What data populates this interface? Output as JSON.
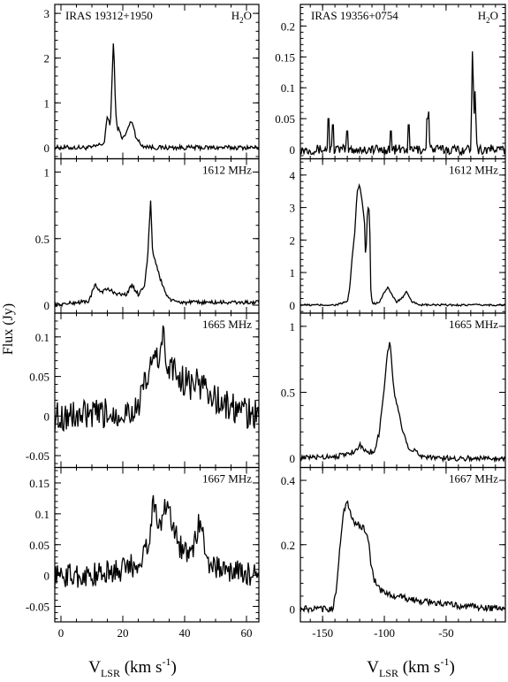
{
  "figure": {
    "ylabel": "Flux (Jy)",
    "xlabel_main": "V",
    "xlabel_sub": "LSR",
    "xlabel_unit": " (km s",
    "xlabel_sup": "-1",
    "xlabel_close": ")"
  },
  "chart_data": [
    {
      "type": "line",
      "column": "left",
      "row": 0,
      "source": "IRAS 19312+1950",
      "line": "H",
      "line_sub": "2",
      "line_end": "O",
      "xlim": [
        -2,
        64
      ],
      "ylim": [
        -0.25,
        3.2
      ],
      "yticks": [
        0,
        1,
        2,
        3
      ],
      "ytick_labels": [
        "0",
        "1",
        "2",
        "3"
      ],
      "series": [
        {
          "x": [
            -2,
            10,
            14,
            15,
            16,
            16.5,
            17,
            17.5,
            18,
            19,
            20,
            21,
            22,
            23,
            24,
            25,
            26,
            30,
            40,
            50,
            64
          ],
          "y": [
            0,
            0,
            0.1,
            0.7,
            0.5,
            1.5,
            2.45,
            1.2,
            0.5,
            0.35,
            0.2,
            0.3,
            0.5,
            0.6,
            0.3,
            0.15,
            0.05,
            0,
            0,
            0,
            0
          ],
          "noise": 0.05
        }
      ]
    },
    {
      "type": "line",
      "column": "right",
      "row": 0,
      "source": "IRAS 19356+0754",
      "line": "H",
      "line_sub": "2",
      "line_end": "O",
      "xlim": [
        -168,
        -2
      ],
      "ylim": [
        -0.015,
        0.235
      ],
      "yticks": [
        0,
        0.05,
        0.1,
        0.15,
        0.2
      ],
      "ytick_labels": [
        "0",
        "0.05",
        "0.1",
        "0.15",
        "0.2"
      ],
      "series": [
        {
          "x": [
            -168,
            -150,
            -140,
            -66,
            -64.5,
            -63,
            -30,
            -28.5,
            -27.5,
            -26.5,
            -25,
            -2
          ],
          "y": [
            0,
            0,
            0,
            0,
            0.08,
            0,
            0,
            0.19,
            0.05,
            0.1,
            0,
            0
          ],
          "noise": 0.008,
          "spikes": [
            [
              -145,
              0.05
            ],
            [
              -142,
              0.04
            ],
            [
              -130,
              0.03
            ],
            [
              -95,
              0.03
            ],
            [
              -80,
              0.04
            ],
            [
              -65,
              0.05
            ]
          ]
        }
      ]
    },
    {
      "type": "line",
      "column": "left",
      "row": 1,
      "line": "1612 MHz",
      "xlim": [
        -2,
        64
      ],
      "ylim": [
        -0.06,
        1.1
      ],
      "yticks": [
        0,
        0.5,
        1
      ],
      "ytick_labels": [
        "0",
        "0.5",
        "1"
      ],
      "series": [
        {
          "x": [
            -2,
            5,
            9,
            11,
            13,
            15,
            17,
            19,
            21,
            23,
            25,
            27,
            28,
            29,
            29.5,
            30,
            31,
            32,
            33,
            34,
            36,
            40,
            45,
            64
          ],
          "y": [
            0,
            0.02,
            0.03,
            0.15,
            0.1,
            0.12,
            0.1,
            0.08,
            0.08,
            0.15,
            0.08,
            0.15,
            0.35,
            0.8,
            0.45,
            0.35,
            0.3,
            0.2,
            0.15,
            0.08,
            0.03,
            0.02,
            0.02,
            0.02
          ],
          "noise": 0.015
        }
      ]
    },
    {
      "type": "line",
      "column": "right",
      "row": 1,
      "line": "1612 MHz",
      "xlim": [
        -168,
        -2
      ],
      "ylim": [
        -0.25,
        4.5
      ],
      "yticks": [
        0,
        1,
        2,
        3,
        4
      ],
      "ytick_labels": [
        "0",
        "1",
        "2",
        "3",
        "4"
      ],
      "series": [
        {
          "x": [
            -168,
            -140,
            -130,
            -128,
            -126,
            -124,
            -122,
            -120,
            -118,
            -116,
            -115,
            -114,
            -113,
            -112,
            -111,
            -110,
            -109,
            -107,
            -104,
            -100,
            -97,
            -94,
            -90,
            -86,
            -82,
            -78,
            -70,
            -40,
            -2
          ],
          "y": [
            0,
            0,
            0.1,
            0.5,
            1.5,
            2.2,
            3.5,
            3.7,
            3.2,
            2.5,
            1.2,
            2.7,
            3.0,
            2.9,
            0.5,
            0.1,
            0.05,
            0.05,
            0.1,
            0.4,
            0.55,
            0.3,
            0.1,
            0.2,
            0.4,
            0.1,
            0,
            0,
            0
          ],
          "noise": 0.03
        }
      ]
    },
    {
      "type": "line",
      "column": "left",
      "row": 2,
      "line": "1665 MHz",
      "xlim": [
        -2,
        64
      ],
      "ylim": [
        -0.065,
        0.13
      ],
      "yticks": [
        -0.05,
        0,
        0.05,
        0.1
      ],
      "ytick_labels": [
        "-0.05",
        "0",
        "0.05",
        "0.1"
      ],
      "series": [
        {
          "x": [
            -2,
            10,
            20,
            25,
            28,
            30,
            32,
            33,
            34,
            36,
            38,
            42,
            46,
            50,
            55,
            64
          ],
          "y": [
            0,
            0,
            0.005,
            0.01,
            0.05,
            0.07,
            0.08,
            0.1,
            0.07,
            0.06,
            0.05,
            0.04,
            0.04,
            0.02,
            0.01,
            0
          ],
          "noise": 0.02
        }
      ]
    },
    {
      "type": "line",
      "column": "right",
      "row": 2,
      "line": "1665 MHz",
      "xlim": [
        -168,
        -2
      ],
      "ylim": [
        -0.07,
        1.1
      ],
      "yticks": [
        0,
        0.5,
        1
      ],
      "ytick_labels": [
        "0",
        "0.5",
        "1"
      ],
      "series": [
        {
          "x": [
            -168,
            -135,
            -125,
            -120,
            -115,
            -108,
            -104,
            -100,
            -98,
            -96,
            -95,
            -94,
            -92,
            -90,
            -88,
            -85,
            -80,
            -75,
            -70,
            -55,
            -2
          ],
          "y": [
            0,
            0.02,
            0.05,
            0.1,
            0.05,
            0.05,
            0.2,
            0.55,
            0.75,
            0.88,
            0.85,
            0.7,
            0.5,
            0.4,
            0.35,
            0.2,
            0.08,
            0.05,
            0.02,
            0,
            0
          ],
          "noise": 0.02
        }
      ]
    },
    {
      "type": "line",
      "column": "left",
      "row": 3,
      "line": "1667 MHz",
      "xlim": [
        -2,
        64
      ],
      "ylim": [
        -0.075,
        0.175
      ],
      "yticks": [
        -0.05,
        0,
        0.05,
        0.1,
        0.15
      ],
      "ytick_labels": [
        "-0.05",
        "0",
        "0.05",
        "0.1",
        "0.15"
      ],
      "series": [
        {
          "x": [
            -2,
            10,
            20,
            25,
            28,
            29,
            30,
            31,
            32,
            33,
            34,
            36,
            38,
            40,
            42,
            44,
            45,
            46,
            48,
            52,
            64
          ],
          "y": [
            0,
            0,
            0.01,
            0.02,
            0.05,
            0.08,
            0.12,
            0.1,
            0.07,
            0.1,
            0.12,
            0.09,
            0.05,
            0.04,
            0.03,
            0.07,
            0.09,
            0.06,
            0.02,
            0.01,
            0
          ],
          "noise": 0.02
        }
      ]
    },
    {
      "type": "line",
      "column": "right",
      "row": 3,
      "line": "1667 MHz",
      "xlim": [
        -168,
        -2
      ],
      "ylim": [
        -0.04,
        0.44
      ],
      "yticks": [
        0,
        0.2,
        0.4
      ],
      "ytick_labels": [
        "0",
        "0.2",
        "0.4"
      ],
      "series": [
        {
          "x": [
            -168,
            -142,
            -139,
            -136,
            -133,
            -130,
            -125,
            -120,
            -116,
            -113,
            -111,
            -108,
            -104,
            -100,
            -90,
            -80,
            -60,
            -40,
            -2
          ],
          "y": [
            0,
            0,
            0.05,
            0.2,
            0.3,
            0.33,
            0.27,
            0.26,
            0.25,
            0.22,
            0.14,
            0.09,
            0.06,
            0.05,
            0.04,
            0.03,
            0.02,
            0.01,
            0
          ],
          "noise": 0.01
        }
      ]
    }
  ],
  "x_axes": {
    "left": {
      "ticks": [
        0,
        20,
        40,
        60
      ],
      "labels": [
        "0",
        "20",
        "40",
        "60"
      ],
      "minor": 5
    },
    "right": {
      "ticks": [
        -150,
        -100,
        -50
      ],
      "labels": [
        "-150",
        "-100",
        "-50"
      ],
      "minor": 10
    }
  }
}
